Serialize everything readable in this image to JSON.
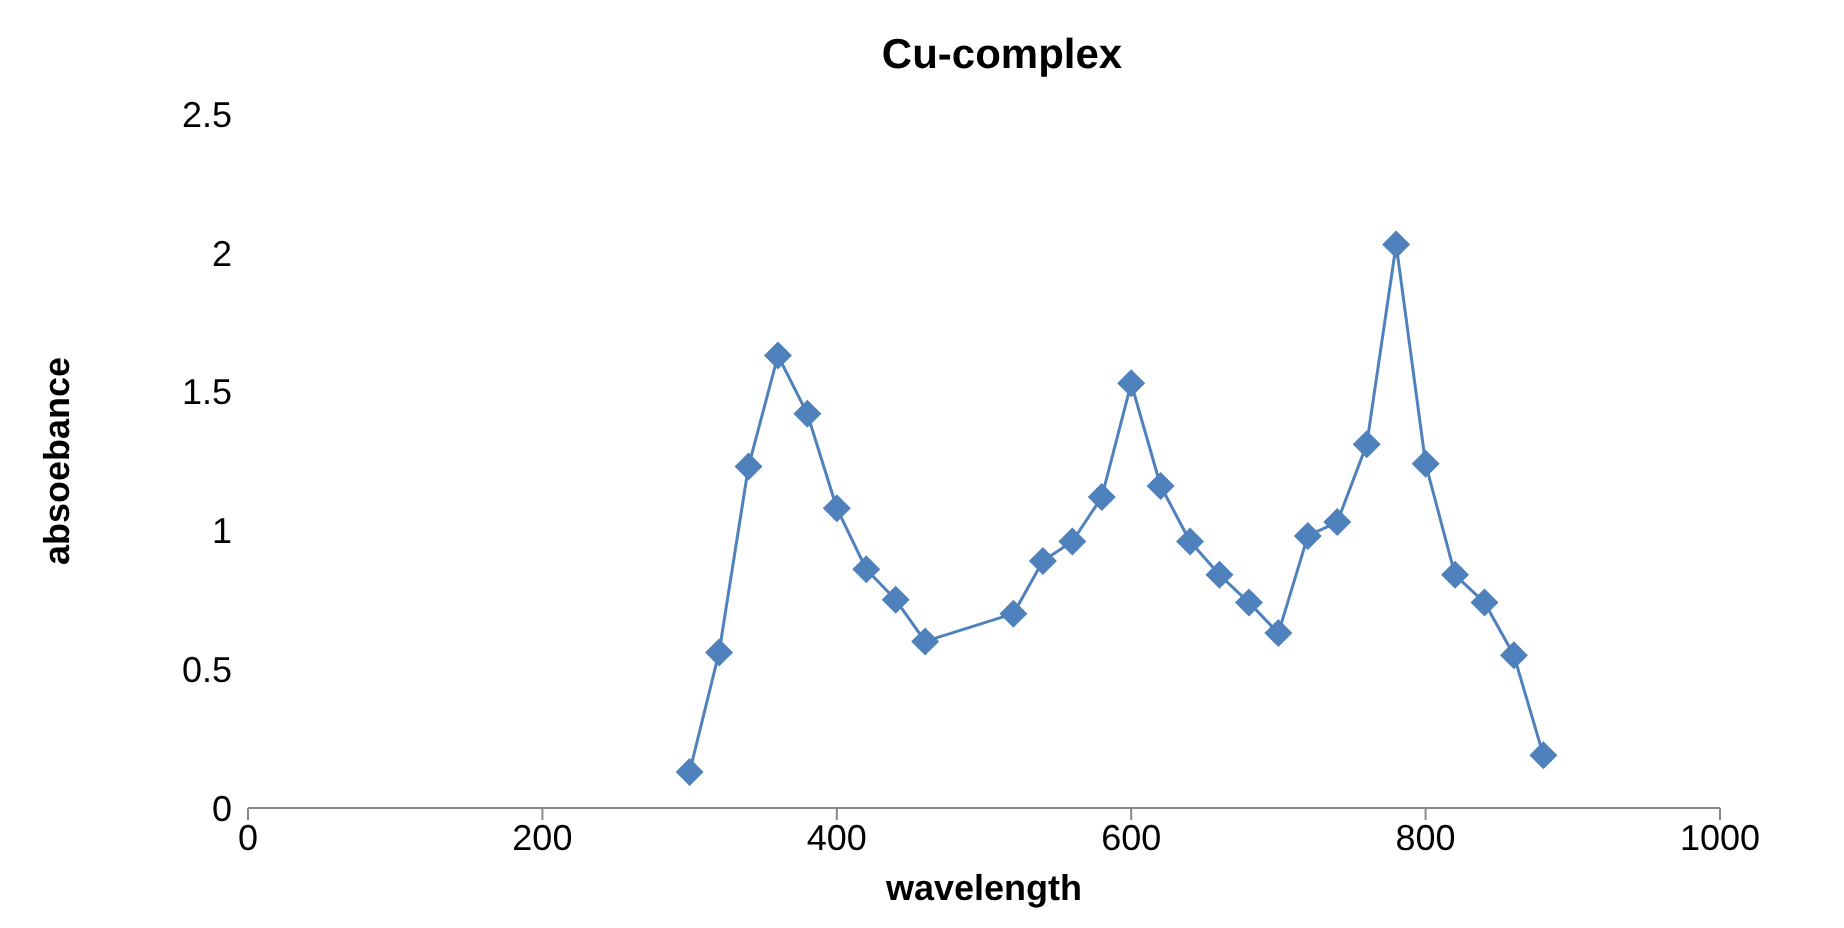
{
  "chart_data": {
    "type": "line",
    "title": "Cu-complex",
    "xlabel": "wavelength",
    "ylabel": "absoebance",
    "x": [
      300,
      320,
      340,
      360,
      380,
      400,
      420,
      440,
      460,
      520,
      540,
      560,
      580,
      600,
      620,
      640,
      660,
      680,
      700,
      720,
      740,
      760,
      780,
      800,
      820,
      840,
      860,
      880
    ],
    "series": [
      {
        "color": "#4f81bd",
        "values": [
          0.13,
          0.56,
          1.23,
          1.63,
          1.42,
          1.08,
          0.86,
          0.75,
          0.6,
          0.7,
          0.89,
          0.96,
          1.12,
          1.53,
          1.16,
          0.96,
          0.84,
          0.74,
          0.63,
          0.98,
          1.03,
          1.31,
          2.03,
          1.24,
          0.84,
          0.74,
          0.55,
          0.19
        ]
      }
    ],
    "xlim": [
      0,
      1000
    ],
    "xticks": [
      0,
      200,
      400,
      600,
      800,
      1000
    ],
    "ylim": [
      0,
      2.5
    ],
    "yticks": [
      0,
      0.5,
      1,
      1.5,
      2,
      2.5
    ],
    "grid": false,
    "legend": false,
    "marker": "diamond",
    "line_style": "solid"
  }
}
